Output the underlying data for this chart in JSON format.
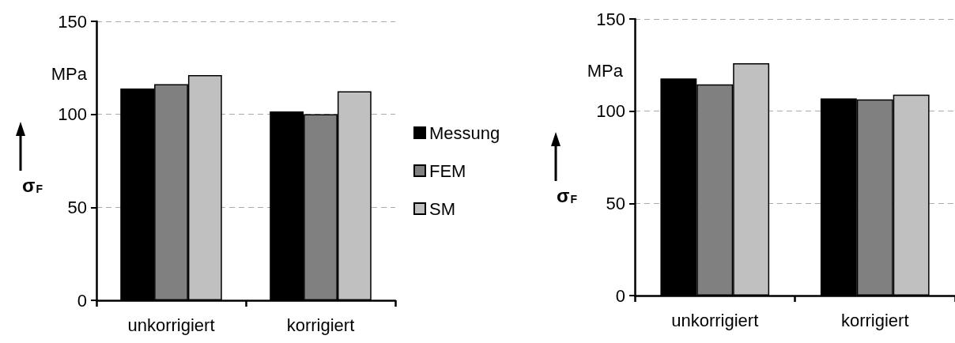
{
  "chart_data": [
    {
      "type": "bar",
      "ylabel": "σ$_{F}$",
      "annotations": [
        "MPa"
      ],
      "categories": [
        "unkorrigiert",
        "korrigiert"
      ],
      "series": [
        {
          "name": "Messung",
          "color": "#000000",
          "values": [
            113.9,
            101.6
          ]
        },
        {
          "name": "FEM",
          "color": "#808080",
          "values": [
            116.2,
            100.1
          ]
        },
        {
          "name": "SM",
          "color": "#c0c0c0",
          "values": [
            121.1,
            112.4
          ]
        }
      ],
      "ylim": [
        0,
        150
      ],
      "yticks": [
        0,
        50,
        100,
        150
      ],
      "grid": "y",
      "legend": "right"
    },
    {
      "type": "bar",
      "ylabel": "σ$_{F}$",
      "annotations": [
        "MPa"
      ],
      "categories": [
        "unkorrigiert",
        "korrigiert"
      ],
      "series": [
        {
          "color": "#000000",
          "values": [
            117.8,
            106.9
          ]
        },
        {
          "color": "#808080",
          "values": [
            114.5,
            106.4
          ]
        },
        {
          "color": "#c0c0c0",
          "values": [
            126.0,
            109.0
          ]
        }
      ],
      "ylim": [
        0,
        150
      ],
      "yticks": [
        0,
        50,
        100,
        150
      ],
      "grid": "y"
    }
  ]
}
